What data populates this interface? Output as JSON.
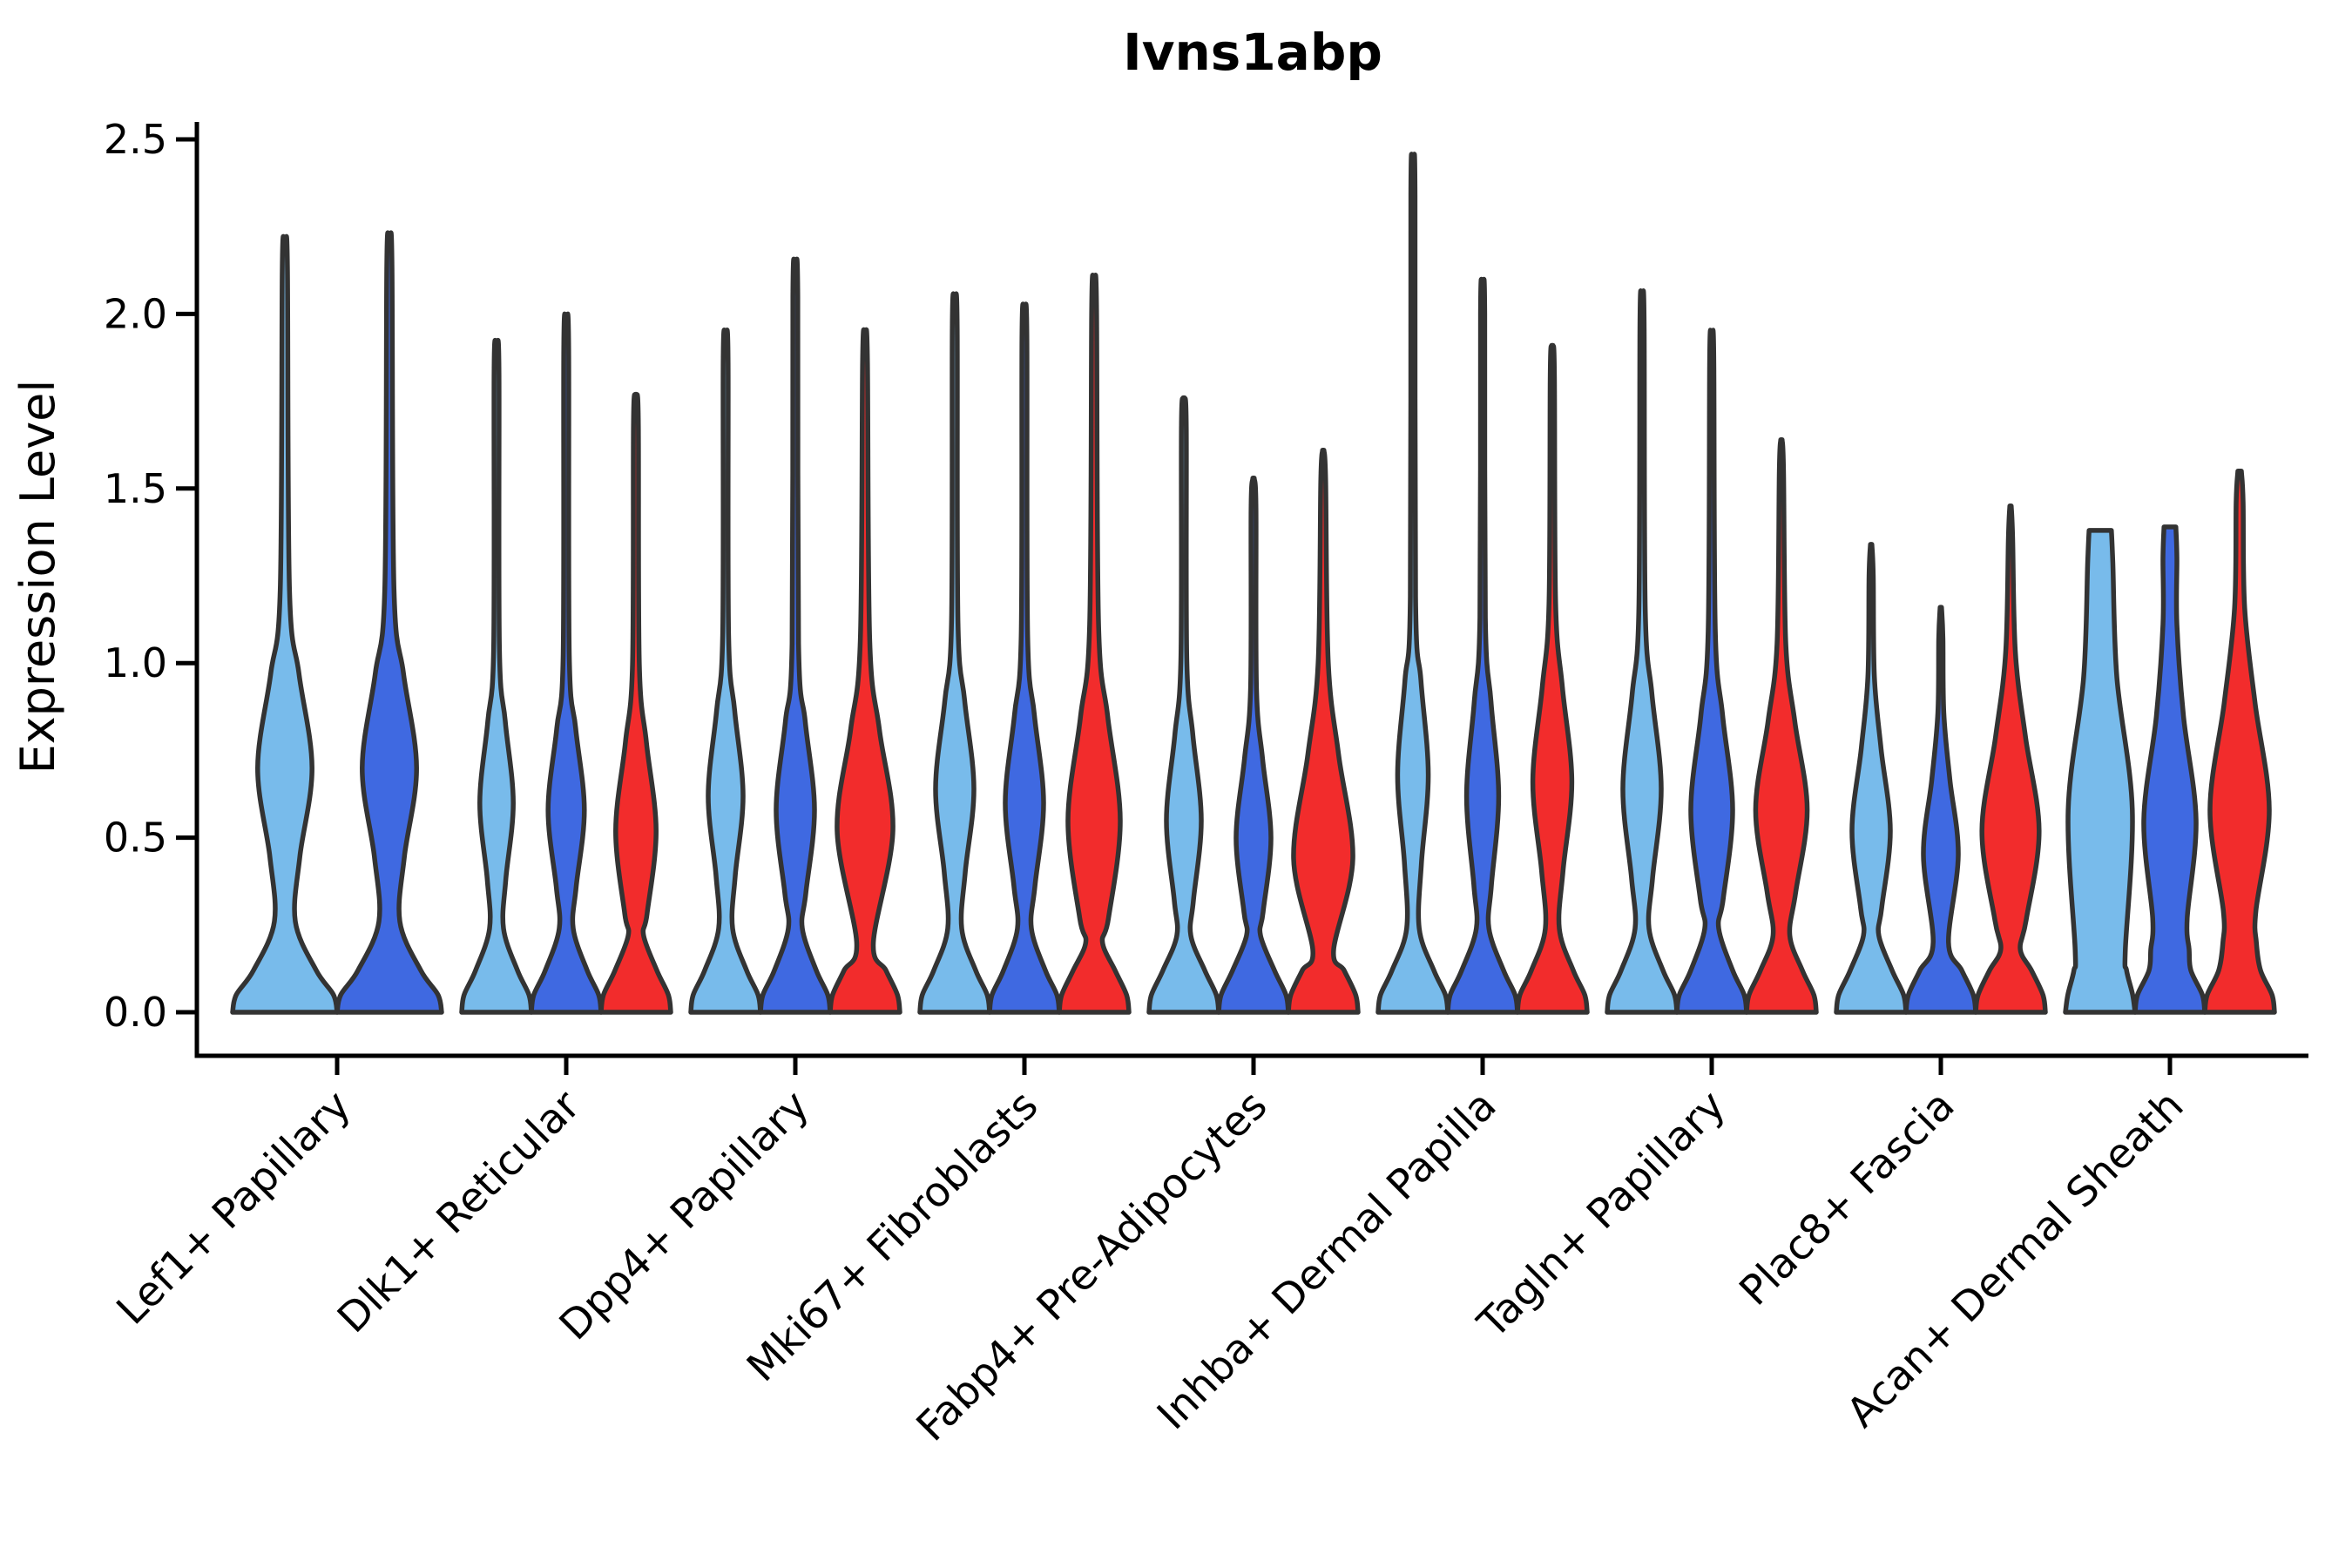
{
  "title": "Ivns1abp",
  "chart_data": {
    "type": "violin",
    "title": "Ivns1abp",
    "xlabel": "",
    "ylabel": "Expression Level",
    "ylim": [
      0,
      2.5
    ],
    "yticks": [
      "0.0",
      "0.5",
      "1.0",
      "1.5",
      "2.0",
      "2.5"
    ],
    "grid": false,
    "legend_position": "none",
    "colors": {
      "lightblue": "#78BBEB",
      "darkblue": "#3F69E1",
      "red": "#F22C2C",
      "outline": "#333333"
    },
    "groups": [
      {
        "label": "Lef1+ Papillary",
        "violins": [
          {
            "series": "lightblue",
            "max": 2.21,
            "c": 0.7,
            "amp": 0.52,
            "sig": 0.3,
            "waist": [
              0.26,
              0.2
            ],
            "neck": 0.05,
            "top": 0.015
          },
          {
            "series": "darkblue",
            "max": 2.22,
            "c": 0.7,
            "amp": 0.52,
            "sig": 0.3,
            "waist": [
              0.26,
              0.2
            ],
            "neck": 0.05,
            "top": 0.015
          }
        ]
      },
      {
        "label": "Dlk1+ Reticular",
        "violins": [
          {
            "series": "lightblue",
            "max": 1.92,
            "c": 0.6,
            "amp": 0.48,
            "sig": 0.26,
            "waist": [
              0.24,
              0.2
            ],
            "neck": 0.07,
            "top": 0.02
          },
          {
            "series": "darkblue",
            "max": 1.99,
            "c": 0.58,
            "amp": 0.52,
            "sig": 0.26,
            "waist": [
              0.24,
              0.2
            ],
            "neck": 0.07,
            "top": 0.02
          },
          {
            "series": "red",
            "max": 1.77,
            "c": 0.52,
            "amp": 0.58,
            "sig": 0.28,
            "waist": [
              0.22,
              0.22
            ],
            "neck": 0.07,
            "top": 0.02
          }
        ]
      },
      {
        "label": "Dpp4+ Papillary",
        "violins": [
          {
            "series": "lightblue",
            "max": 1.95,
            "c": 0.62,
            "amp": 0.5,
            "sig": 0.27,
            "waist": [
              0.24,
              0.2
            ],
            "neck": 0.07,
            "top": 0.02
          },
          {
            "series": "darkblue",
            "max": 2.14,
            "c": 0.58,
            "amp": 0.55,
            "sig": 0.28,
            "waist": [
              0.24,
              0.2
            ],
            "neck": 0.07,
            "top": 0.02
          },
          {
            "series": "red",
            "max": 1.95,
            "c": 0.52,
            "amp": 0.8,
            "sig": 0.32,
            "waist": [
              0.2,
              0.24
            ],
            "neck": 0.07,
            "top": 0.02
          }
        ]
      },
      {
        "label": "Mki67+ Fibroblasts",
        "violins": [
          {
            "series": "lightblue",
            "max": 2.05,
            "c": 0.64,
            "amp": 0.55,
            "sig": 0.28,
            "waist": [
              0.24,
              0.2
            ],
            "neck": 0.07,
            "top": 0.02
          },
          {
            "series": "darkblue",
            "max": 2.02,
            "c": 0.6,
            "amp": 0.55,
            "sig": 0.28,
            "waist": [
              0.24,
              0.2
            ],
            "neck": 0.07,
            "top": 0.02
          },
          {
            "series": "red",
            "max": 2.1,
            "c": 0.55,
            "amp": 0.75,
            "sig": 0.33,
            "waist": [
              0.2,
              0.24
            ],
            "neck": 0.07,
            "top": 0.02
          }
        ]
      },
      {
        "label": "Fabp4+ Pre-Adipocytes",
        "violins": [
          {
            "series": "lightblue",
            "max": 1.76,
            "c": 0.55,
            "amp": 0.5,
            "sig": 0.27,
            "waist": [
              0.22,
              0.2
            ],
            "neck": 0.07,
            "top": 0.02
          },
          {
            "series": "darkblue",
            "max": 1.53,
            "c": 0.5,
            "amp": 0.5,
            "sig": 0.25,
            "waist": [
              0.22,
              0.2
            ],
            "neck": 0.07,
            "top": 0.02
          },
          {
            "series": "red",
            "max": 1.61,
            "c": 0.44,
            "amp": 0.85,
            "sig": 0.33,
            "waist": [
              0.18,
              0.3
            ],
            "neck": 0.07,
            "top": 0.02
          }
        ]
      },
      {
        "label": "Inhba+ Dermal Papilla",
        "violins": [
          {
            "series": "lightblue",
            "max": 2.43,
            "c": 0.68,
            "amp": 0.44,
            "sig": 0.3,
            "waist": [
              0.24,
              0.18
            ],
            "neck": 0.06,
            "top": 0.02
          },
          {
            "series": "darkblue",
            "max": 2.09,
            "c": 0.62,
            "amp": 0.46,
            "sig": 0.3,
            "waist": [
              0.24,
              0.18
            ],
            "neck": 0.06,
            "top": 0.02
          },
          {
            "series": "red",
            "max": 1.91,
            "c": 0.66,
            "amp": 0.56,
            "sig": 0.3,
            "waist": [
              0.24,
              0.2
            ],
            "neck": 0.06,
            "top": 0.02
          }
        ]
      },
      {
        "label": "Tagln+ Papillary",
        "violins": [
          {
            "series": "lightblue",
            "max": 2.06,
            "c": 0.64,
            "amp": 0.55,
            "sig": 0.3,
            "waist": [
              0.24,
              0.2
            ],
            "neck": 0.06,
            "top": 0.02
          },
          {
            "series": "darkblue",
            "max": 1.95,
            "c": 0.58,
            "amp": 0.6,
            "sig": 0.3,
            "waist": [
              0.24,
              0.2
            ],
            "neck": 0.06,
            "top": 0.02
          },
          {
            "series": "red",
            "max": 1.64,
            "c": 0.58,
            "amp": 0.74,
            "sig": 0.28,
            "waist": [
              0.22,
              0.24
            ],
            "neck": 0.06,
            "top": 0.02
          }
        ]
      },
      {
        "label": "Plac8+ Fascia",
        "violins": [
          {
            "series": "lightblue",
            "max": 1.34,
            "c": 0.52,
            "amp": 0.55,
            "sig": 0.26,
            "waist": [
              0.22,
              0.22
            ],
            "neck": 0.06,
            "top": 0.02
          },
          {
            "series": "darkblue",
            "max": 1.16,
            "c": 0.45,
            "amp": 0.5,
            "sig": 0.24,
            "waist": [
              0.2,
              0.22
            ],
            "neck": 0.06,
            "top": 0.02
          },
          {
            "series": "red",
            "max": 1.45,
            "c": 0.52,
            "amp": 0.82,
            "sig": 0.3,
            "waist": [
              0.18,
              0.28
            ],
            "neck": 0.06,
            "top": 0.02
          }
        ]
      },
      {
        "label": "Acan+ Dermal Sheath",
        "violins": [
          {
            "series": "lightblue",
            "max": 1.38,
            "c": 0.58,
            "amp": 0.92,
            "sig": 0.42,
            "waist": [
              0.18,
              0.72
            ],
            "neck": 0.36,
            "top": 0.32
          },
          {
            "series": "darkblue",
            "max": 1.39,
            "c": 0.55,
            "amp": 0.75,
            "sig": 0.33,
            "waist": [
              0.18,
              0.55
            ],
            "neck": 0.2,
            "top": 0.17
          },
          {
            "series": "red",
            "max": 1.55,
            "c": 0.58,
            "amp": 0.85,
            "sig": 0.34,
            "waist": [
              0.2,
              0.48
            ],
            "neck": 0.1,
            "top": 0.05
          }
        ]
      }
    ]
  }
}
